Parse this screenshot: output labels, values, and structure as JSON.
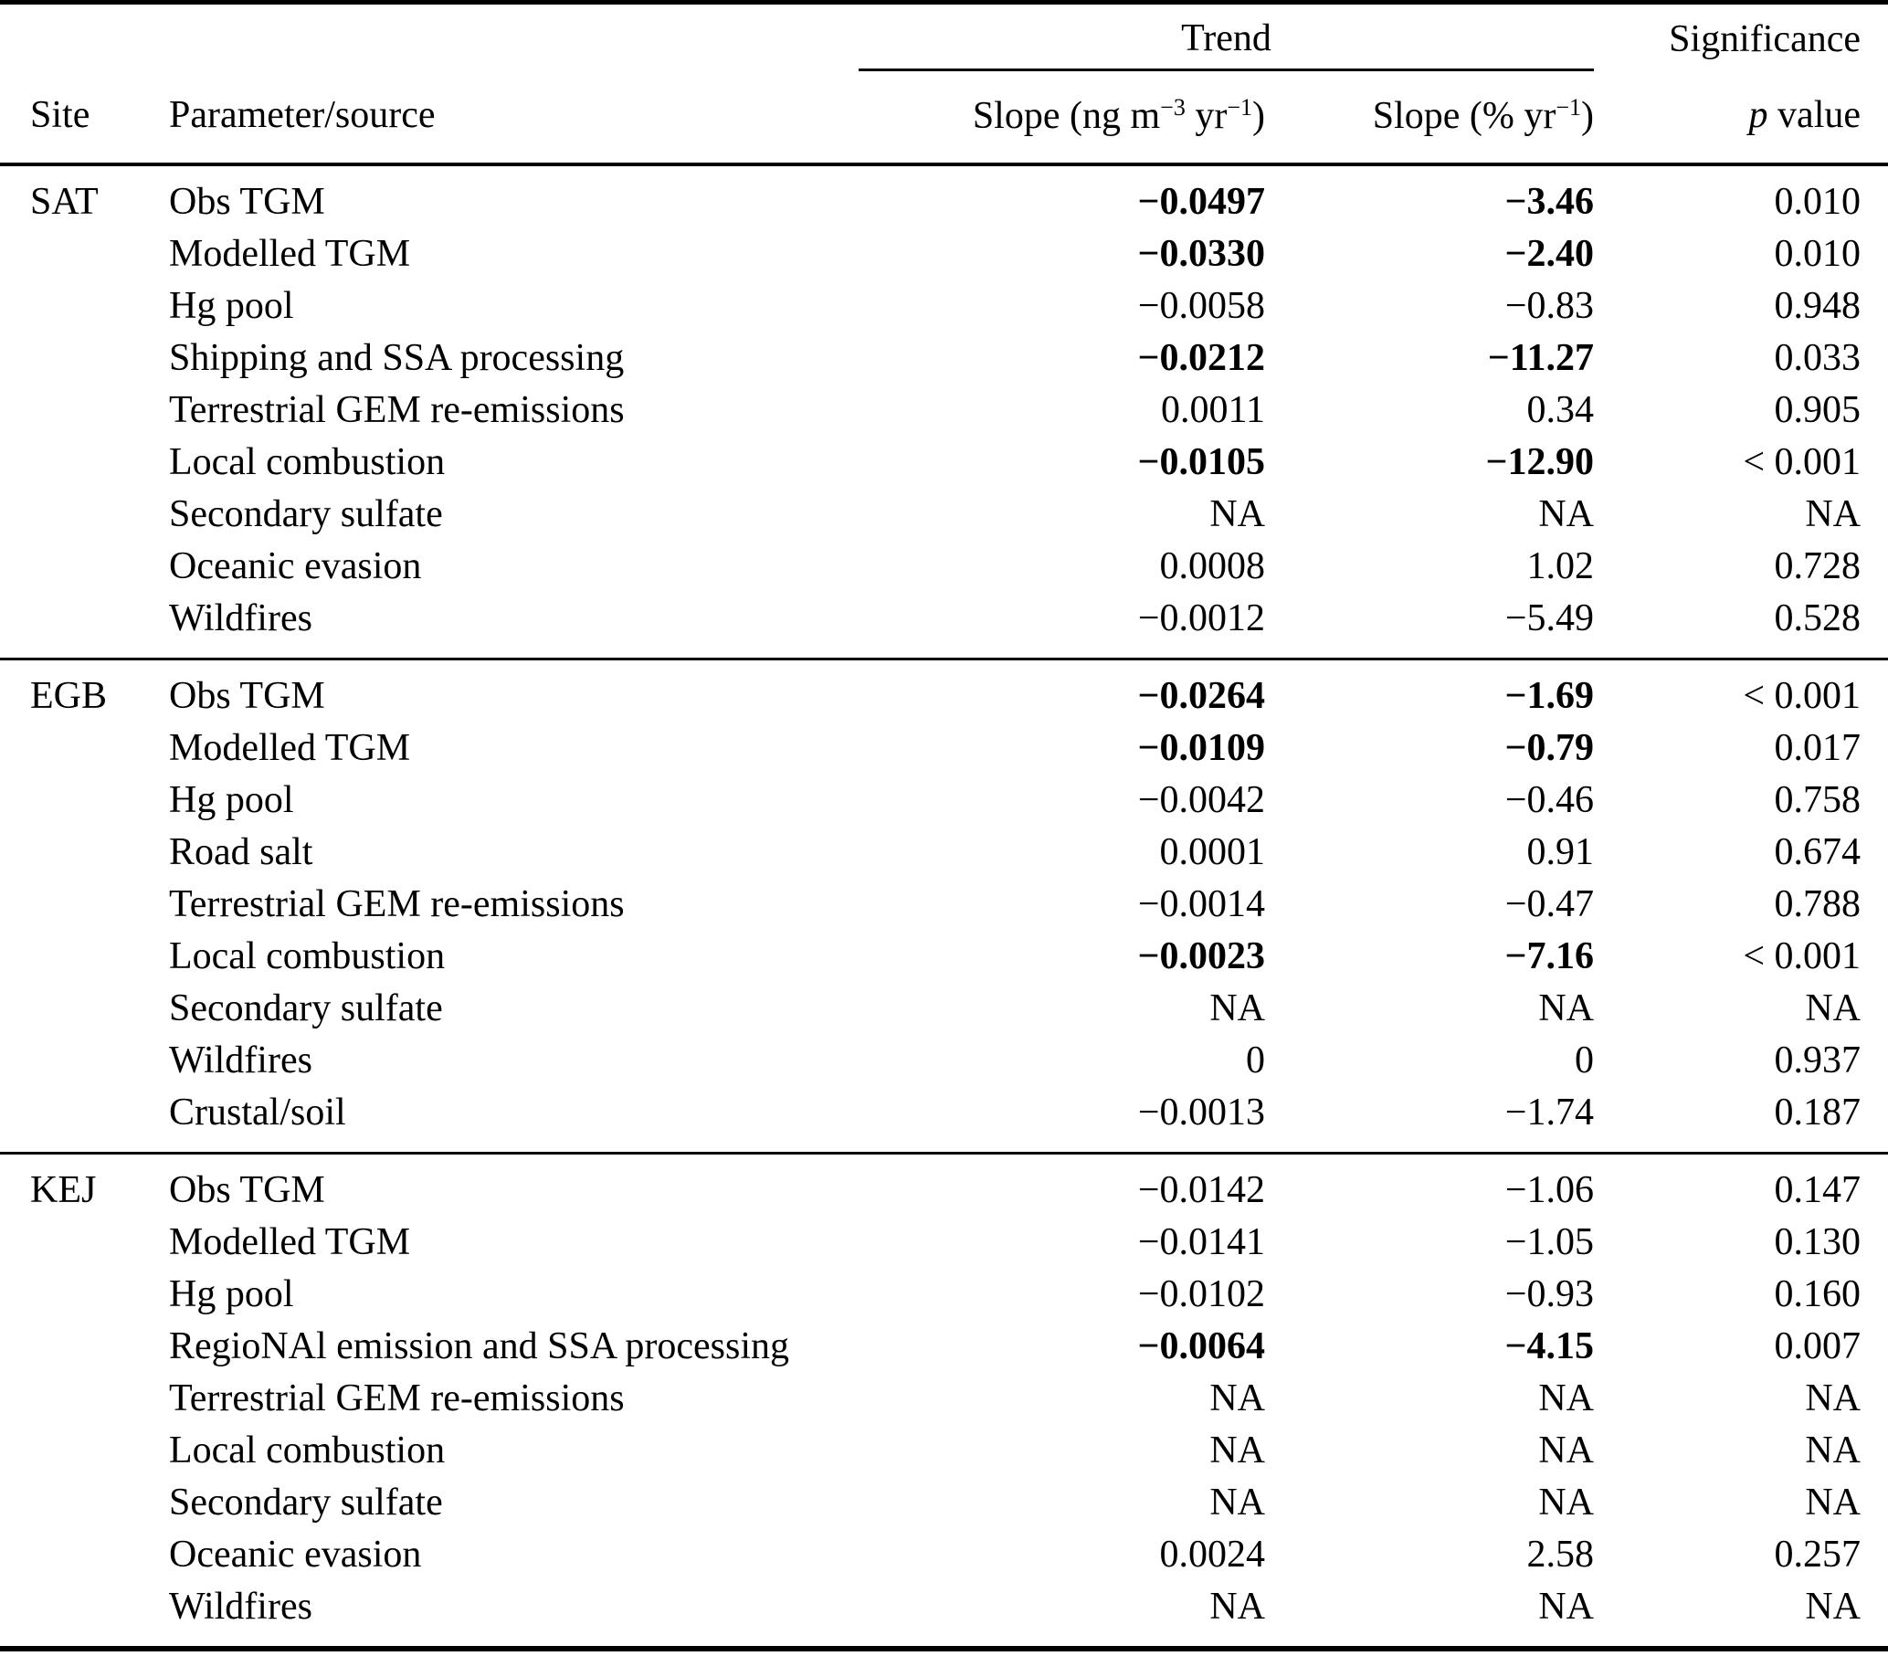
{
  "colors": {
    "text": "#000000",
    "background": "#ffffff",
    "rules": "#000000"
  },
  "table": {
    "header": {
      "trend": "Trend",
      "significance": "Significance",
      "site": "Site",
      "param": "Parameter/source",
      "slope_ng": {
        "pre": "Slope (ng m",
        "sup1": "−3",
        "mid": " yr",
        "sup2": "−1",
        "post": ")"
      },
      "slope_pct": {
        "pre": "Slope (% yr",
        "sup1": "−1",
        "post": ")"
      },
      "p_value": {
        "italic": "p",
        "rest": " value"
      }
    },
    "sections": [
      {
        "site": "SAT",
        "rows": [
          {
            "param": "Obs TGM",
            "slope_ng": "−0.0497",
            "slope_pct": "−3.46",
            "p": "0.010",
            "bold": true
          },
          {
            "param": "Modelled TGM",
            "slope_ng": "−0.0330",
            "slope_pct": "−2.40",
            "p": "0.010",
            "bold": true
          },
          {
            "param": "Hg pool",
            "slope_ng": "−0.0058",
            "slope_pct": "−0.83",
            "p": "0.948",
            "bold": false
          },
          {
            "param": "Shipping and SSA processing",
            "slope_ng": "−0.0212",
            "slope_pct": "−11.27",
            "p": "0.033",
            "bold": true
          },
          {
            "param": "Terrestrial GEM re-emissions",
            "slope_ng": "0.0011",
            "slope_pct": "0.34",
            "p": "0.905",
            "bold": false
          },
          {
            "param": "Local combustion",
            "slope_ng": "−0.0105",
            "slope_pct": "−12.90",
            "p": "< 0.001",
            "bold": true
          },
          {
            "param": "Secondary sulfate",
            "slope_ng": "NA",
            "slope_pct": "NA",
            "p": "NA",
            "bold": false
          },
          {
            "param": "Oceanic evasion",
            "slope_ng": "0.0008",
            "slope_pct": "1.02",
            "p": "0.728",
            "bold": false
          },
          {
            "param": "Wildfires",
            "slope_ng": "−0.0012",
            "slope_pct": "−5.49",
            "p": "0.528",
            "bold": false
          }
        ]
      },
      {
        "site": "EGB",
        "rows": [
          {
            "param": "Obs TGM",
            "slope_ng": "−0.0264",
            "slope_pct": "−1.69",
            "p": "< 0.001",
            "bold": true
          },
          {
            "param": "Modelled TGM",
            "slope_ng": "−0.0109",
            "slope_pct": "−0.79",
            "p": "0.017",
            "bold": true
          },
          {
            "param": "Hg pool",
            "slope_ng": "−0.0042",
            "slope_pct": "−0.46",
            "p": "0.758",
            "bold": false
          },
          {
            "param": "Road salt",
            "slope_ng": "0.0001",
            "slope_pct": "0.91",
            "p": "0.674",
            "bold": false
          },
          {
            "param": "Terrestrial GEM re-emissions",
            "slope_ng": "−0.0014",
            "slope_pct": "−0.47",
            "p": "0.788",
            "bold": false
          },
          {
            "param": "Local combustion",
            "slope_ng": "−0.0023",
            "slope_pct": "−7.16",
            "p": "< 0.001",
            "bold": true
          },
          {
            "param": "Secondary sulfate",
            "slope_ng": "NA",
            "slope_pct": "NA",
            "p": "NA",
            "bold": false
          },
          {
            "param": "Wildfires",
            "slope_ng": "0",
            "slope_pct": "0",
            "p": "0.937",
            "bold": false
          },
          {
            "param": "Crustal/soil",
            "slope_ng": "−0.0013",
            "slope_pct": "−1.74",
            "p": "0.187",
            "bold": false
          }
        ]
      },
      {
        "site": "KEJ",
        "rows": [
          {
            "param": "Obs TGM",
            "slope_ng": "−0.0142",
            "slope_pct": "−1.06",
            "p": "0.147",
            "bold": false
          },
          {
            "param": "Modelled TGM",
            "slope_ng": "−0.0141",
            "slope_pct": "−1.05",
            "p": "0.130",
            "bold": false
          },
          {
            "param": "Hg pool",
            "slope_ng": "−0.0102",
            "slope_pct": "−0.93",
            "p": "0.160",
            "bold": false
          },
          {
            "param": "RegioNAl emission and SSA processing",
            "slope_ng": "−0.0064",
            "slope_pct": "−4.15",
            "p": "0.007",
            "bold": true
          },
          {
            "param": "Terrestrial GEM re-emissions",
            "slope_ng": "NA",
            "slope_pct": "NA",
            "p": "NA",
            "bold": false
          },
          {
            "param": "Local combustion",
            "slope_ng": "NA",
            "slope_pct": "NA",
            "p": "NA",
            "bold": false
          },
          {
            "param": "Secondary sulfate",
            "slope_ng": "NA",
            "slope_pct": "NA",
            "p": "NA",
            "bold": false
          },
          {
            "param": "Oceanic evasion",
            "slope_ng": "0.0024",
            "slope_pct": "2.58",
            "p": "0.257",
            "bold": false
          },
          {
            "param": "Wildfires",
            "slope_ng": "NA",
            "slope_pct": "NA",
            "p": "NA",
            "bold": false
          }
        ]
      }
    ]
  }
}
